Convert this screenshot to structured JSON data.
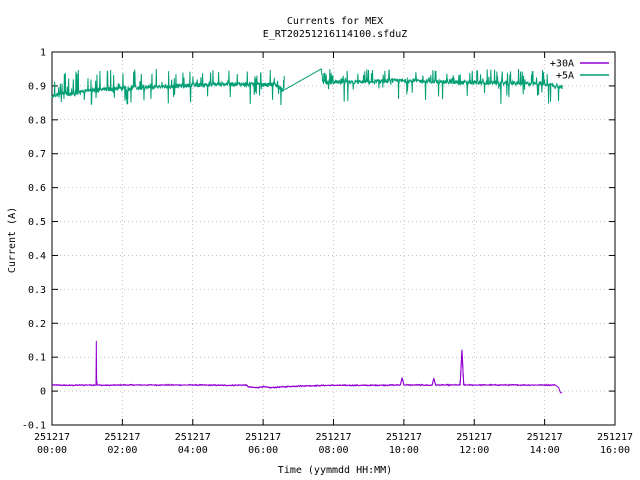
{
  "chart_data": {
    "type": "line",
    "title": "Currents for MEX",
    "subtitle": "E_RT20251216114100.sfduZ",
    "xlabel": "Time (yymmdd HH:MM)",
    "ylabel": "Current (A)",
    "xlim": [
      "251217 00:00",
      "251217 16:00"
    ],
    "ylim": [
      -0.1,
      1
    ],
    "x_ticks": [
      {
        "date": "251217",
        "time": "00:00",
        "hour": 0
      },
      {
        "date": "251217",
        "time": "02:00",
        "hour": 2
      },
      {
        "date": "251217",
        "time": "04:00",
        "hour": 4
      },
      {
        "date": "251217",
        "time": "06:00",
        "hour": 6
      },
      {
        "date": "251217",
        "time": "08:00",
        "hour": 8
      },
      {
        "date": "251217",
        "time": "10:00",
        "hour": 10
      },
      {
        "date": "251217",
        "time": "12:00",
        "hour": 12
      },
      {
        "date": "251217",
        "time": "14:00",
        "hour": 14
      },
      {
        "date": "251217",
        "time": "16:00",
        "hour": 16
      }
    ],
    "y_ticks": [
      "-0.1",
      "0",
      "0.1",
      "0.2",
      "0.3",
      "0.4",
      "0.5",
      "0.6",
      "0.7",
      "0.8",
      "0.9",
      "1"
    ],
    "grid": true,
    "legend_position": "top-right",
    "series": [
      {
        "name": "+30A",
        "color": "#9400d3",
        "x": [
          0,
          0.5,
          1.0,
          1.25,
          1.26,
          1.27,
          1.5,
          2.0,
          3.0,
          4.0,
          5.0,
          5.5,
          5.6,
          5.8,
          6.0,
          6.2,
          6.5,
          7.0,
          7.5,
          7.9,
          8.0,
          9.0,
          9.9,
          9.95,
          10.0,
          10.5,
          10.8,
          10.85,
          10.9,
          11.0,
          11.6,
          11.65,
          11.7,
          12.0,
          13.0,
          14.0,
          14.3,
          14.4,
          14.45,
          14.5
        ],
        "y": [
          0.018,
          0.017,
          0.018,
          0.018,
          0.148,
          0.018,
          0.017,
          0.018,
          0.018,
          0.018,
          0.017,
          0.018,
          0.012,
          0.01,
          0.013,
          0.01,
          0.012,
          0.015,
          0.016,
          0.017,
          0.017,
          0.017,
          0.018,
          0.04,
          0.018,
          0.018,
          0.017,
          0.038,
          0.018,
          0.018,
          0.018,
          0.122,
          0.018,
          0.018,
          0.018,
          0.018,
          0.018,
          0.01,
          -0.005,
          -0.005
        ]
      },
      {
        "name": "+5A",
        "color": "#009e73",
        "x": [
          0,
          0.3,
          0.6,
          0.9,
          1.2,
          1.5,
          2.0,
          2.5,
          3.0,
          3.5,
          4.0,
          4.5,
          5.0,
          5.5,
          6.0,
          6.3,
          6.6,
          7.65,
          7.7,
          8.0,
          8.5,
          9.0,
          9.5,
          10.0,
          10.5,
          11.0,
          11.5,
          12.0,
          12.5,
          13.0,
          13.5,
          14.0,
          14.3,
          14.5
        ],
        "y": [
          0.87,
          0.88,
          0.875,
          0.885,
          0.888,
          0.89,
          0.893,
          0.895,
          0.897,
          0.9,
          0.902,
          0.904,
          0.906,
          0.905,
          0.903,
          0.904,
          0.888,
          0.95,
          0.91,
          0.91,
          0.91,
          0.912,
          0.914,
          0.915,
          0.914,
          0.912,
          0.91,
          0.91,
          0.909,
          0.908,
          0.907,
          0.906,
          0.9,
          0.895
        ],
        "noise_range": [
          0.83,
          0.95
        ]
      }
    ]
  }
}
